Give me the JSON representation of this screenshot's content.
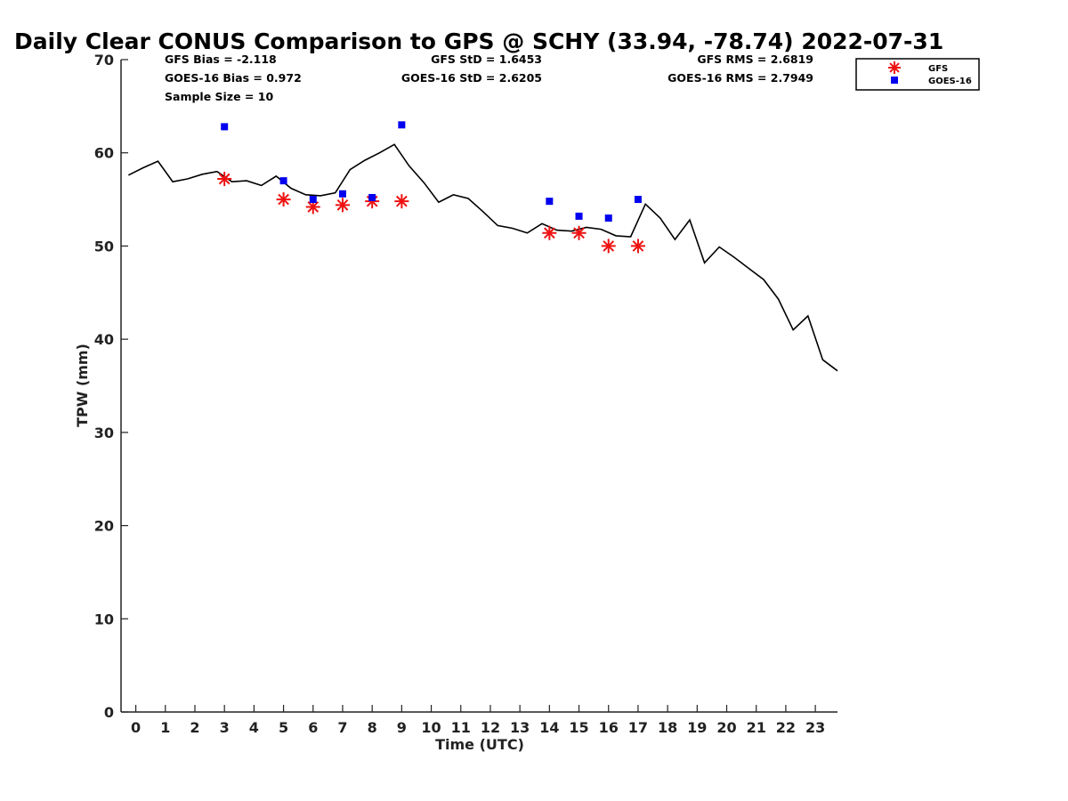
{
  "chart_data": {
    "type": "scatter",
    "title": "Daily Clear CONUS Comparison to GPS @ SCHY (33.94, -78.74) 2022-07-31",
    "xlabel": "Time (UTC)",
    "ylabel": "TPW (mm)",
    "xlim": [
      -0.5,
      23.75
    ],
    "ylim": [
      0,
      70
    ],
    "xticks": [
      0,
      1,
      2,
      3,
      4,
      5,
      6,
      7,
      8,
      9,
      10,
      11,
      12,
      13,
      14,
      15,
      16,
      17,
      18,
      19,
      20,
      21,
      22,
      23
    ],
    "yticks": [
      0,
      10,
      20,
      30,
      40,
      50,
      60,
      70
    ],
    "grid": false,
    "legend_position": "top-right",
    "stats": {
      "gfs_bias": "GFS Bias = -2.118",
      "goes_bias": "GOES-16 Bias = 0.972",
      "sample_size": "Sample Size = 10",
      "gfs_std": "GFS StD = 1.6453",
      "goes_std": "GOES-16 StD = 2.6205",
      "gfs_rms": "GFS RMS = 2.6819",
      "goes_rms": "GOES-16 RMS = 2.7949"
    },
    "series": [
      {
        "name": "",
        "kind": "line",
        "color": "#000000",
        "x": [
          -0.25,
          0.25,
          0.75,
          1.25,
          1.75,
          2.25,
          2.75,
          3.25,
          3.75,
          4.25,
          4.75,
          5.25,
          5.75,
          6.25,
          6.75,
          7.25,
          7.75,
          8.25,
          8.75,
          9.25,
          9.75,
          10.25,
          10.75,
          11.25,
          11.75,
          12.25,
          12.75,
          13.25,
          13.75,
          14.25,
          14.75,
          15.25,
          15.75,
          16.25,
          16.75,
          17.25,
          17.75,
          18.25,
          18.75,
          19.25,
          19.75,
          20.25,
          20.75,
          21.25,
          21.75,
          22.25,
          22.75,
          23.25,
          23.75
        ],
        "y": [
          57.6,
          58.4,
          59.1,
          56.9,
          57.2,
          57.7,
          58.0,
          56.9,
          57.0,
          56.5,
          57.5,
          56.2,
          55.5,
          55.4,
          55.7,
          58.2,
          59.2,
          60.0,
          60.9,
          58.6,
          56.8,
          54.7,
          55.5,
          55.1,
          53.7,
          52.2,
          51.9,
          51.4,
          52.4,
          51.7,
          51.6,
          52.0,
          51.8,
          51.1,
          51.0,
          54.5,
          53.0,
          50.7,
          52.8,
          48.2,
          49.9,
          48.8,
          47.6,
          46.4,
          44.3,
          41.0,
          42.5,
          37.8,
          36.6
        ]
      },
      {
        "name": "GFS",
        "kind": "asterisk",
        "color": "#ee1111",
        "x": [
          3,
          5,
          6,
          7,
          8,
          9,
          14,
          15,
          16,
          17
        ],
        "y": [
          57.2,
          55.0,
          54.2,
          54.4,
          54.8,
          54.8,
          51.4,
          51.4,
          50.0,
          50.0
        ]
      },
      {
        "name": "GOES-16",
        "kind": "square",
        "color": "#0000ee",
        "x": [
          3,
          5,
          6,
          7,
          8,
          9,
          14,
          15,
          16,
          17
        ],
        "y": [
          62.8,
          57.0,
          55.0,
          55.6,
          55.2,
          63.0,
          54.8,
          53.2,
          53.0,
          55.0
        ]
      }
    ]
  }
}
